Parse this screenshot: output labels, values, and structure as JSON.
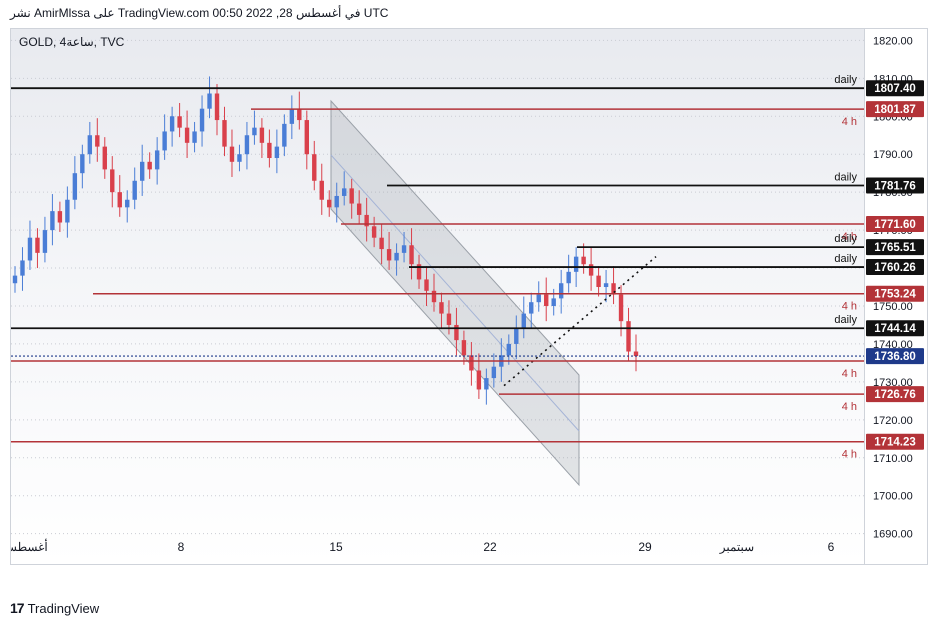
{
  "header": {
    "publisher_line": "نشر AmirMlssa على TradingView.com 00:50 2022 ,28 في أغسطس UTC"
  },
  "symbol": {
    "label": "GOLD, 4ساعة, TVC"
  },
  "footer": {
    "brand": "TradingView"
  },
  "colors": {
    "up": "#4a7dd6",
    "down": "#d9404b",
    "daily_line": "#111111",
    "h4_line": "#b33338",
    "current_price": "#1e3a8a",
    "channel": "#9aa0a8"
  },
  "chart_data": {
    "type": "candlestick",
    "timeframe": "4 h",
    "y_axis": {
      "ylim": [
        1682,
        1823
      ],
      "ticks": [
        1820.0,
        1810.0,
        1800.0,
        1790.0,
        1780.0,
        1770.0,
        1760.0,
        1750.0,
        1740.0,
        1730.0,
        1720.0,
        1710.0,
        1700.0,
        1690.0
      ]
    },
    "x_axis": {
      "ticks": [
        "أغسطس",
        "8",
        "15",
        "22",
        "29",
        "سبتمبر",
        "6"
      ]
    },
    "levels": [
      {
        "price": "1807.40",
        "kind": "daily",
        "label": "daily",
        "color": "#111111"
      },
      {
        "price": "1801.87",
        "kind": "4h",
        "label": "4 h",
        "color": "#b33338"
      },
      {
        "price": "1781.76",
        "kind": "daily",
        "label": "daily",
        "color": "#111111"
      },
      {
        "price": "1771.60",
        "kind": "4h",
        "label": "4 h",
        "color": "#b33338"
      },
      {
        "price": "1765.51",
        "kind": "daily",
        "label": "daily",
        "color": "#111111"
      },
      {
        "price": "1760.26",
        "kind": "daily",
        "label": "daily",
        "color": "#111111"
      },
      {
        "price": "1753.24",
        "kind": "4h",
        "label": "4 h",
        "color": "#b33338"
      },
      {
        "price": "1744.14",
        "kind": "daily",
        "label": "daily",
        "color": "#111111"
      },
      {
        "price": "1736.80",
        "kind": "current",
        "label": "",
        "color": "#1e3a8a"
      },
      {
        "price": "1735.50",
        "kind": "4h",
        "label": "4 h",
        "color": "#b33338"
      },
      {
        "price": "1726.76",
        "kind": "4h",
        "label": "4 h",
        "color": "#b33338"
      },
      {
        "price": "1714.23",
        "kind": "4h",
        "label": "4 h",
        "color": "#b33338"
      }
    ],
    "price_path": [
      1758,
      1762,
      1768,
      1764,
      1770,
      1775,
      1772,
      1778,
      1785,
      1790,
      1795,
      1792,
      1786,
      1780,
      1776,
      1778,
      1783,
      1788,
      1786,
      1791,
      1796,
      1800,
      1797,
      1793,
      1796,
      1802,
      1806,
      1799,
      1792,
      1788,
      1790,
      1795,
      1797,
      1793,
      1789,
      1792,
      1798,
      1802,
      1799,
      1790,
      1783,
      1778,
      1776,
      1779,
      1781,
      1777,
      1774,
      1771,
      1768,
      1765,
      1762,
      1764,
      1766,
      1761,
      1757,
      1754,
      1751,
      1748,
      1745,
      1741,
      1737,
      1733,
      1728,
      1731,
      1734,
      1737,
      1740,
      1744,
      1748,
      1751,
      1753,
      1750,
      1752,
      1756,
      1759,
      1763,
      1761,
      1758,
      1755,
      1756,
      1753,
      1746,
      1738,
      1736.8
    ]
  }
}
